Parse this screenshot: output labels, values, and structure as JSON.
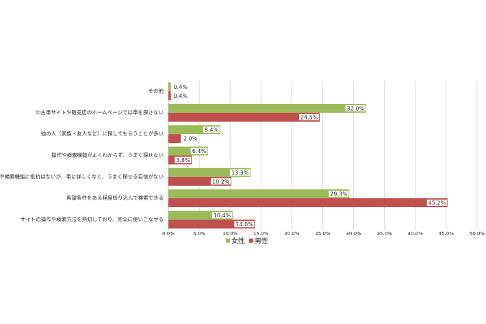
{
  "chart_data": {
    "type": "bar",
    "orientation": "horizontal",
    "categories": [
      "その他",
      "中古車サイトや販売店のホームページでは車を探さない",
      "他の人（家族・友人など）に探してもらうことが多い",
      "操作や検索機能がよくわからず、うまく探せない",
      "操作や検索機能に抵抗はないが、車に詳しくなく、うまく探せる自信がない",
      "希望条件をある程度絞り込んで検索できる",
      "サイトの操作や検索方法を熟知しており、完全に使いこなせる"
    ],
    "series": [
      {
        "name": "女性",
        "color": "#9bbb59",
        "values": [
          0.4,
          32.0,
          8.4,
          6.4,
          13.3,
          29.3,
          10.4
        ],
        "value_labels": [
          "0.4%",
          "32.0%",
          "8.4%",
          "6.4%",
          "13.3%",
          "29.3%",
          "10.4%"
        ]
      },
      {
        "name": "男性",
        "color": "#c0504d",
        "values": [
          0.4,
          24.5,
          2.0,
          3.8,
          10.2,
          45.2,
          14.0
        ],
        "value_labels": [
          "0.4%",
          "24.5%",
          "2.0%",
          "3.8%",
          "10.2%",
          "45.2%",
          "14.0%"
        ]
      }
    ],
    "xlim": [
      0,
      50
    ],
    "xticks": [
      {
        "value": 0,
        "label": "0.0%"
      },
      {
        "value": 5,
        "label": "5.0%"
      },
      {
        "value": 10,
        "label": "10.0%"
      },
      {
        "value": 15,
        "label": "15.0%"
      },
      {
        "value": 20,
        "label": "20.0%"
      },
      {
        "value": 25,
        "label": "25.0%"
      },
      {
        "value": 30,
        "label": "30.0%"
      },
      {
        "value": 35,
        "label": "35.0%"
      },
      {
        "value": 40,
        "label": "40.0%"
      },
      {
        "value": 45,
        "label": "45.0%"
      },
      {
        "value": 50,
        "label": "50.0%"
      }
    ],
    "grid": true,
    "legend": "bottom"
  }
}
